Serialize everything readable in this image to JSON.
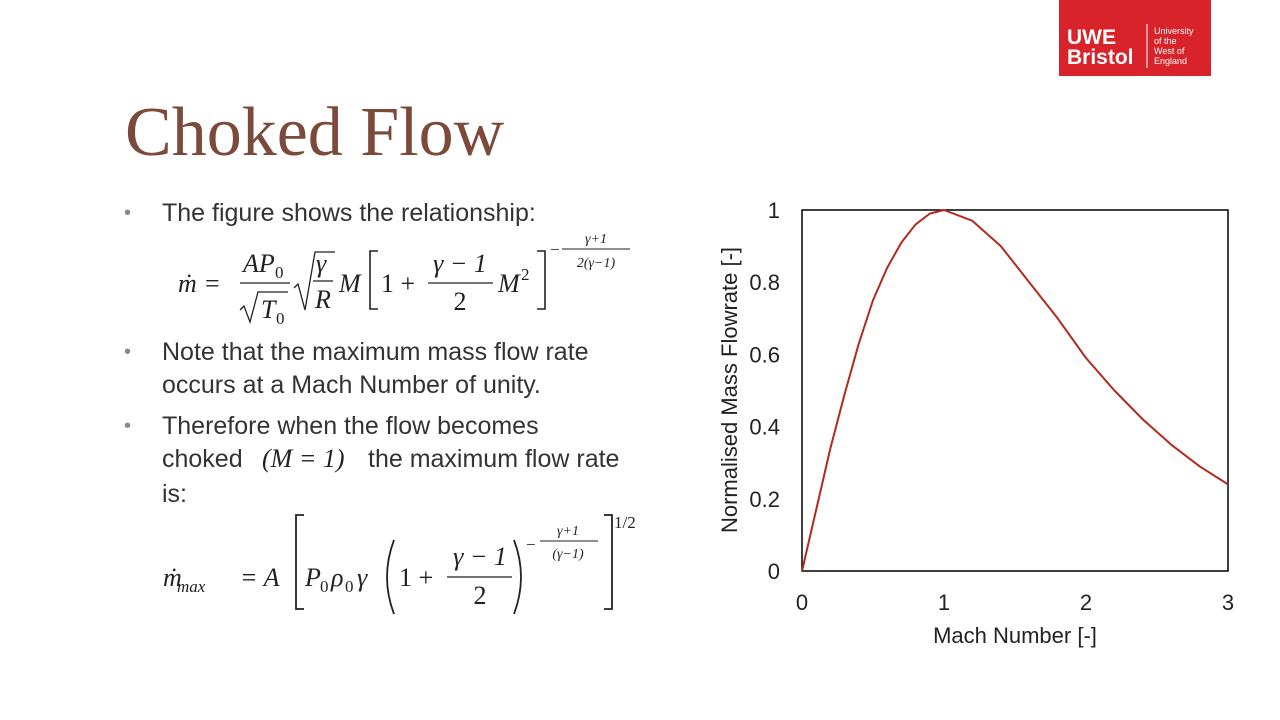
{
  "logo": {
    "line1": "UWE",
    "line2": "Bristol",
    "sub": [
      "University",
      "of the",
      "West of",
      "England"
    ]
  },
  "title": "Choked Flow",
  "bullets": [
    {
      "lines": [
        "The figure shows the relationship:"
      ]
    },
    {
      "lines": [
        "Note that the maximum mass flow rate",
        "occurs at a Mach Number of unity."
      ]
    },
    {
      "line1": "Therefore when the flow becomes",
      "line2_start": "choked",
      "line2_math": "(M = 1)",
      "line2_end": "the maximum flow rate",
      "line3": "is:"
    }
  ],
  "equation_1": {
    "lhs": "ṁ",
    "eq": "=",
    "num": "AP",
    "num_sub": "0",
    "den": "T",
    "den_sub": "0",
    "root_num": "γ",
    "root_den": "R",
    "m": "M",
    "one_plus": "1 +",
    "frac_num": "γ − 1",
    "frac_den": "2",
    "m2": "M",
    "m2_exp": "2",
    "exp_sign": "−",
    "exp_num": "γ+1",
    "exp_den": "2(γ−1)"
  },
  "equation_2": {
    "lhs": "ṁ",
    "lhs_sub": "max",
    "eq": "= A",
    "p": "P",
    "p_sub": "0",
    "rho": "ρ",
    "rho_sub": "0",
    "gamma": "γ",
    "one_plus": "1 +",
    "frac_num": "γ − 1",
    "frac_den": "2",
    "exp_sign": "−",
    "exp_num": "γ+1",
    "exp_den": "(γ−1)",
    "outer_exp": "1/2"
  },
  "chart_data": {
    "type": "line",
    "xlabel": "Mach Number [-]",
    "ylabel": "Normalised Mass Flowrate [-]",
    "x": [
      0,
      0.1,
      0.2,
      0.3,
      0.4,
      0.5,
      0.6,
      0.7,
      0.8,
      0.9,
      1.0,
      1.2,
      1.4,
      1.6,
      1.8,
      2.0,
      2.2,
      2.4,
      2.6,
      2.8,
      3.0
    ],
    "values": [
      0,
      0.17,
      0.34,
      0.49,
      0.63,
      0.75,
      0.84,
      0.91,
      0.96,
      0.99,
      1,
      0.97,
      0.9,
      0.8,
      0.7,
      0.59,
      0.5,
      0.42,
      0.35,
      0.29,
      0.24
    ],
    "color": "#b22a1e",
    "xlim": [
      0,
      3
    ],
    "xticks": [
      0,
      1,
      2,
      3
    ],
    "ylim": [
      0,
      1
    ],
    "yticks": [
      0,
      0.2,
      0.4,
      0.6,
      0.8,
      1
    ]
  }
}
